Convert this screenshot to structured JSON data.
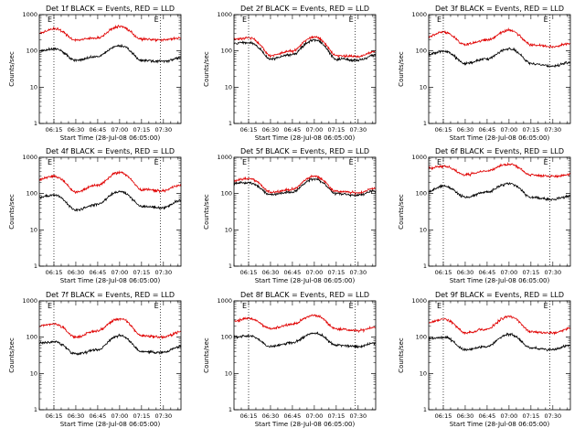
{
  "colors": {
    "events": "#000000",
    "lld": "#e00000",
    "axes": "#000000",
    "background": "#ffffff"
  },
  "chart_data": [
    {
      "type": "line",
      "title": "Det 1f BLACK = Events, RED = LLD",
      "xlabel": "Start Time (28-Jul-08 06:05:00)",
      "ylabel": "Counts/sec",
      "yscale": "log",
      "ylim": [
        1,
        1000
      ],
      "x_ticks": [
        "06:15",
        "06:30",
        "06:45",
        "07:00",
        "07:15",
        "07:30"
      ],
      "y_ticks": [
        "1",
        "10",
        "100",
        "1000"
      ],
      "markers": [
        "E",
        "E"
      ],
      "marker_times": [
        "06:15",
        "07:28"
      ],
      "xlim": [
        "06:05",
        "07:42"
      ],
      "series": [
        {
          "name": "Events",
          "x": [
            "06:05",
            "06:15",
            "06:30",
            "06:45",
            "07:00",
            "07:15",
            "07:30",
            "07:42"
          ],
          "values": [
            100,
            115,
            55,
            70,
            140,
            55,
            52,
            65
          ]
        },
        {
          "name": "LLD",
          "x": [
            "06:05",
            "06:15",
            "06:30",
            "06:45",
            "07:00",
            "07:15",
            "07:30",
            "07:42"
          ],
          "values": [
            300,
            410,
            200,
            230,
            470,
            210,
            200,
            230
          ]
        }
      ]
    },
    {
      "type": "line",
      "title": "Det 2f BLACK = Events, RED = LLD",
      "xlabel": "Start Time (28-Jul-08 06:05:00)",
      "ylabel": "Counts/sec",
      "yscale": "log",
      "ylim": [
        1,
        1000
      ],
      "x_ticks": [
        "06:15",
        "06:30",
        "06:45",
        "07:00",
        "07:15",
        "07:30"
      ],
      "y_ticks": [
        "1",
        "10",
        "100",
        "1000"
      ],
      "markers": [
        "E",
        "E"
      ],
      "marker_times": [
        "06:15",
        "07:28"
      ],
      "xlim": [
        "06:05",
        "07:42"
      ],
      "series": [
        {
          "name": "Events",
          "x": [
            "06:05",
            "06:15",
            "06:30",
            "06:45",
            "07:00",
            "07:15",
            "07:30",
            "07:42"
          ],
          "values": [
            160,
            170,
            60,
            80,
            200,
            60,
            55,
            75
          ]
        },
        {
          "name": "LLD",
          "x": [
            "06:05",
            "06:15",
            "06:30",
            "06:45",
            "07:00",
            "07:15",
            "07:30",
            "07:42"
          ],
          "values": [
            210,
            230,
            75,
            100,
            240,
            75,
            70,
            95
          ]
        }
      ]
    },
    {
      "type": "line",
      "title": "Det 3f BLACK = Events, RED = LLD",
      "xlabel": "Start Time (28-Jul-08 06:05:00)",
      "ylabel": "Counts/sec",
      "yscale": "log",
      "ylim": [
        1,
        1000
      ],
      "x_ticks": [
        "06:15",
        "06:30",
        "06:45",
        "07:00",
        "07:15",
        "07:30"
      ],
      "y_ticks": [
        "1",
        "10",
        "100",
        "1000"
      ],
      "markers": [
        "E",
        "E"
      ],
      "marker_times": [
        "06:15",
        "07:28"
      ],
      "xlim": [
        "06:05",
        "07:42"
      ],
      "series": [
        {
          "name": "Events",
          "x": [
            "06:05",
            "06:15",
            "06:30",
            "06:45",
            "07:00",
            "07:15",
            "07:30",
            "07:42"
          ],
          "values": [
            80,
            100,
            45,
            60,
            115,
            45,
            38,
            48
          ]
        },
        {
          "name": "LLD",
          "x": [
            "06:05",
            "06:15",
            "06:30",
            "06:45",
            "07:00",
            "07:15",
            "07:30",
            "07:42"
          ],
          "values": [
            250,
            330,
            150,
            200,
            370,
            150,
            130,
            160
          ]
        }
      ]
    },
    {
      "type": "line",
      "title": "Det 4f BLACK = Events, RED = LLD",
      "xlabel": "Start Time (28-Jul-08 06:05:00)",
      "ylabel": "Counts/sec",
      "yscale": "log",
      "ylim": [
        1,
        1000
      ],
      "x_ticks": [
        "06:15",
        "06:30",
        "06:45",
        "07:00",
        "07:15",
        "07:30"
      ],
      "y_ticks": [
        "1",
        "10",
        "100",
        "1000"
      ],
      "markers": [
        "E",
        "E"
      ],
      "marker_times": [
        "06:15",
        "07:28"
      ],
      "xlim": [
        "06:05",
        "07:42"
      ],
      "series": [
        {
          "name": "Events",
          "x": [
            "06:05",
            "06:15",
            "06:30",
            "06:45",
            "07:00",
            "07:15",
            "07:30",
            "07:42"
          ],
          "values": [
            80,
            90,
            35,
            50,
            115,
            45,
            40,
            65
          ]
        },
        {
          "name": "LLD",
          "x": [
            "06:05",
            "06:15",
            "06:30",
            "06:45",
            "07:00",
            "07:15",
            "07:30",
            "07:42"
          ],
          "values": [
            250,
            300,
            110,
            170,
            380,
            130,
            120,
            170
          ]
        }
      ]
    },
    {
      "type": "line",
      "title": "Det 5f BLACK = Events, RED = LLD",
      "xlabel": "Start Time (28-Jul-08 06:05:00)",
      "ylabel": "Counts/sec",
      "yscale": "log",
      "ylim": [
        1,
        1000
      ],
      "x_ticks": [
        "06:15",
        "06:30",
        "06:45",
        "07:00",
        "07:15",
        "07:30"
      ],
      "y_ticks": [
        "1",
        "10",
        "100",
        "1000"
      ],
      "markers": [
        "E",
        "E"
      ],
      "marker_times": [
        "06:15",
        "07:28"
      ],
      "xlim": [
        "06:05",
        "07:42"
      ],
      "series": [
        {
          "name": "Events",
          "x": [
            "06:05",
            "06:15",
            "06:30",
            "06:45",
            "07:00",
            "07:15",
            "07:30",
            "07:42"
          ],
          "values": [
            190,
            200,
            95,
            110,
            250,
            100,
            90,
            120
          ]
        },
        {
          "name": "LLD",
          "x": [
            "06:05",
            "06:15",
            "06:30",
            "06:45",
            "07:00",
            "07:15",
            "07:30",
            "07:42"
          ],
          "values": [
            230,
            260,
            110,
            130,
            300,
            115,
            105,
            140
          ]
        }
      ]
    },
    {
      "type": "line",
      "title": "Det 6f BLACK = Events, RED = LLD",
      "xlabel": "Start Time (28-Jul-08 06:05:00)",
      "ylabel": "Counts/sec",
      "yscale": "log",
      "ylim": [
        1,
        1000
      ],
      "x_ticks": [
        "06:15",
        "06:30",
        "06:45",
        "07:00",
        "07:15",
        "07:30"
      ],
      "y_ticks": [
        "1",
        "10",
        "100",
        "1000"
      ],
      "markers": [
        "E",
        "E"
      ],
      "marker_times": [
        "06:15",
        "07:28"
      ],
      "xlim": [
        "06:05",
        "07:42"
      ],
      "series": [
        {
          "name": "Events",
          "x": [
            "06:05",
            "06:15",
            "06:30",
            "06:45",
            "07:00",
            "07:15",
            "07:30",
            "07:42"
          ],
          "values": [
            120,
            160,
            80,
            110,
            190,
            80,
            70,
            85
          ]
        },
        {
          "name": "LLD",
          "x": [
            "06:05",
            "06:15",
            "06:30",
            "06:45",
            "07:00",
            "07:15",
            "07:30",
            "07:42"
          ],
          "values": [
            500,
            570,
            330,
            420,
            650,
            330,
            300,
            330
          ]
        }
      ]
    },
    {
      "type": "line",
      "title": "Det 7f BLACK = Events, RED = LLD",
      "xlabel": "Start Time (28-Jul-08 06:05:00)",
      "ylabel": "Counts/sec",
      "yscale": "log",
      "ylim": [
        1,
        1000
      ],
      "x_ticks": [
        "06:15",
        "06:30",
        "06:45",
        "07:00",
        "07:15",
        "07:30"
      ],
      "y_ticks": [
        "1",
        "10",
        "100",
        "1000"
      ],
      "markers": [
        "E",
        "E"
      ],
      "marker_times": [
        "06:15",
        "07:28"
      ],
      "xlim": [
        "06:05",
        "07:42"
      ],
      "series": [
        {
          "name": "Events",
          "x": [
            "06:05",
            "06:15",
            "06:30",
            "06:45",
            "07:00",
            "07:15",
            "07:30",
            "07:42"
          ],
          "values": [
            70,
            75,
            35,
            45,
            110,
            40,
            38,
            55
          ]
        },
        {
          "name": "LLD",
          "x": [
            "06:05",
            "06:15",
            "06:30",
            "06:45",
            "07:00",
            "07:15",
            "07:30",
            "07:42"
          ],
          "values": [
            200,
            230,
            100,
            150,
            320,
            110,
            100,
            140
          ]
        }
      ]
    },
    {
      "type": "line",
      "title": "Det 8f BLACK = Events, RED = LLD",
      "xlabel": "Start Time (28-Jul-08 06:05:00)",
      "ylabel": "Counts/sec",
      "yscale": "log",
      "ylim": [
        1,
        1000
      ],
      "x_ticks": [
        "06:15",
        "06:30",
        "06:45",
        "07:00",
        "07:15",
        "07:30"
      ],
      "y_ticks": [
        "1",
        "10",
        "100",
        "1000"
      ],
      "markers": [
        "E",
        "E"
      ],
      "marker_times": [
        "06:15",
        "07:28"
      ],
      "xlim": [
        "06:05",
        "07:42"
      ],
      "series": [
        {
          "name": "Events",
          "x": [
            "06:05",
            "06:15",
            "06:30",
            "06:45",
            "07:00",
            "07:15",
            "07:30",
            "07:42"
          ],
          "values": [
            100,
            110,
            55,
            70,
            130,
            60,
            55,
            70
          ]
        },
        {
          "name": "LLD",
          "x": [
            "06:05",
            "06:15",
            "06:30",
            "06:45",
            "07:00",
            "07:15",
            "07:30",
            "07:42"
          ],
          "values": [
            280,
            330,
            170,
            230,
            400,
            170,
            150,
            190
          ]
        }
      ]
    },
    {
      "type": "line",
      "title": "Det 9f BLACK = Events, RED = LLD",
      "xlabel": "Start Time (28-Jul-08 06:05:00)",
      "ylabel": "Counts/sec",
      "yscale": "log",
      "ylim": [
        1,
        1000
      ],
      "x_ticks": [
        "06:15",
        "06:30",
        "06:45",
        "07:00",
        "07:15",
        "07:30"
      ],
      "y_ticks": [
        "1",
        "10",
        "100",
        "1000"
      ],
      "markers": [
        "E",
        "E"
      ],
      "marker_times": [
        "06:15",
        "07:28"
      ],
      "xlim": [
        "06:05",
        "07:42"
      ],
      "series": [
        {
          "name": "Events",
          "x": [
            "06:05",
            "06:15",
            "06:30",
            "06:45",
            "07:00",
            "07:15",
            "07:30",
            "07:42"
          ],
          "values": [
            90,
            100,
            45,
            55,
            120,
            50,
            45,
            60
          ]
        },
        {
          "name": "LLD",
          "x": [
            "06:05",
            "06:15",
            "06:30",
            "06:45",
            "07:00",
            "07:15",
            "07:30",
            "07:42"
          ],
          "values": [
            250,
            320,
            130,
            170,
            370,
            140,
            130,
            170
          ]
        }
      ]
    }
  ]
}
